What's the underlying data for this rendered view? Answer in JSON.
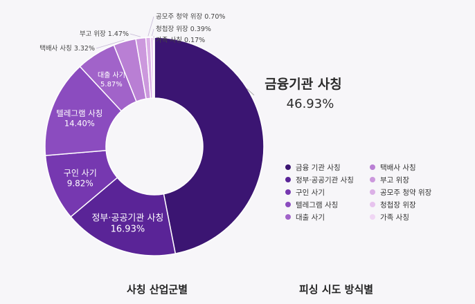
{
  "chart_data": {
    "type": "pie",
    "style": "donut",
    "slices": [
      {
        "label": "금융기관 사칭",
        "value": 46.93,
        "value_text": "46.93%",
        "color": "#3b1572"
      },
      {
        "label": "정부·공공기관 사칭",
        "value": 16.93,
        "value_text": "16.93%",
        "color": "#5a2497"
      },
      {
        "label": "구인 사기",
        "value": 9.82,
        "value_text": "9.82%",
        "color": "#7638b0"
      },
      {
        "label": "텔레그램 사칭",
        "value": 14.4,
        "value_text": "14.40%",
        "color": "#8b4cbf"
      },
      {
        "label": "대출 사기",
        "value": 5.87,
        "value_text": "5.87%",
        "color": "#a163c9"
      },
      {
        "label": "택배사 사칭",
        "value": 3.32,
        "value_text": "3.32%",
        "color": "#b97fd4"
      },
      {
        "label": "부고 위장",
        "value": 1.47,
        "value_text": "1.47%",
        "color": "#cc98dd"
      },
      {
        "label": "공모주 청약 위장",
        "value": 0.7,
        "value_text": "0.70%",
        "color": "#dbb0e6"
      },
      {
        "label": "청첩장 위장",
        "value": 0.39,
        "value_text": "0.39%",
        "color": "#e7c3ee"
      },
      {
        "label": "가족 사칭",
        "value": 0.17,
        "value_text": "0.17%",
        "color": "#f0d6f4"
      }
    ],
    "legend": {
      "left_column": [
        "금융 기관 사칭",
        "정부·공공기관 사칭",
        "구인 사기",
        "텔레그램 사칭",
        "대출 사기"
      ],
      "right_column": [
        "택배사 사칭",
        "부고 위장",
        "공모주 청약 위장",
        "청첩장 위장",
        "가족 사칭"
      ]
    },
    "bottom_labels": [
      "사칭 산업군별",
      "피싱 시도 방식별"
    ]
  }
}
